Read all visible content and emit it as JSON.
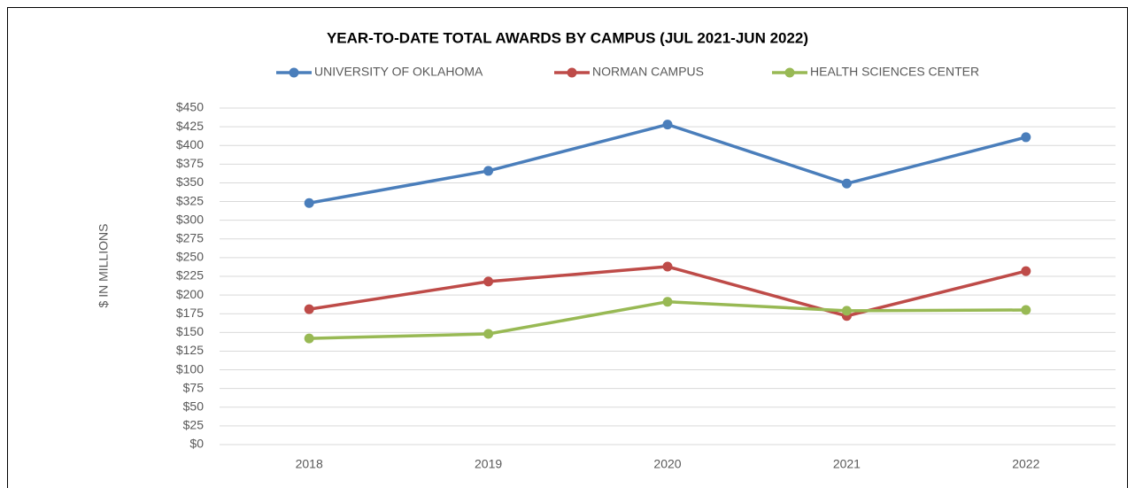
{
  "chart_data": {
    "type": "line",
    "title": "YEAR-TO-DATE TOTAL AWARDS BY CAMPUS (JUL 2021-JUN 2022)",
    "y_label": "$ IN MILLIONS",
    "categories": [
      "2018",
      "2019",
      "2020",
      "2021",
      "2022"
    ],
    "series": [
      {
        "name": "UNIVERSITY OF OKLAHOMA",
        "color": "#4a7ebb",
        "values": [
          323,
          366,
          428,
          349,
          411
        ]
      },
      {
        "name": "NORMAN CAMPUS",
        "color": "#be4b48",
        "values": [
          181,
          218,
          238,
          172,
          232
        ]
      },
      {
        "name": "HEALTH SCIENCES CENTER",
        "color": "#98b954",
        "values": [
          142,
          148,
          191,
          179,
          180
        ]
      }
    ],
    "ylim": [
      0,
      450
    ],
    "yticks": [
      {
        "value": 0,
        "label": "$0"
      },
      {
        "value": 25,
        "label": "$25"
      },
      {
        "value": 50,
        "label": "$50"
      },
      {
        "value": 75,
        "label": "$75"
      },
      {
        "value": 100,
        "label": "$100"
      },
      {
        "value": 125,
        "label": "$125"
      },
      {
        "value": 150,
        "label": "$150"
      },
      {
        "value": 175,
        "label": "$175"
      },
      {
        "value": 200,
        "label": "$200"
      },
      {
        "value": 225,
        "label": "$225"
      },
      {
        "value": 250,
        "label": "$250"
      },
      {
        "value": 275,
        "label": "$275"
      },
      {
        "value": 300,
        "label": "$300"
      },
      {
        "value": 325,
        "label": "$325"
      },
      {
        "value": 350,
        "label": "$350"
      },
      {
        "value": 375,
        "label": "$375"
      },
      {
        "value": 400,
        "label": "$400"
      },
      {
        "value": 425,
        "label": "$425"
      },
      {
        "value": 450,
        "label": "$450"
      }
    ],
    "grid": true,
    "legend": "top"
  }
}
